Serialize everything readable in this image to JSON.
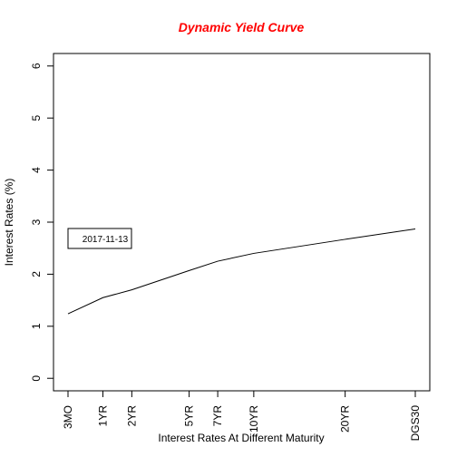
{
  "colors": {
    "title": "#ff0000",
    "line": "#000000",
    "axis": "#000000",
    "background": "#ffffff"
  },
  "chart_data": {
    "type": "line",
    "title": "Dynamic Yield Curve",
    "xlabel": "Interest Rates At Different Maturity",
    "ylabel": "Interest Rates (%)",
    "x_positions_years": [
      0.25,
      1,
      2,
      5,
      7,
      10,
      20,
      30
    ],
    "categories": [
      "3MO",
      "1YR",
      "2YR",
      "5YR",
      "7YR",
      "10YR",
      "20YR",
      "DGS30"
    ],
    "x_scale": "sqrt",
    "series": [
      {
        "name": "2017-11-13",
        "values": [
          1.24,
          1.55,
          1.7,
          2.07,
          2.25,
          2.4,
          2.67,
          2.87
        ]
      }
    ],
    "yticks": [
      0,
      1,
      2,
      3,
      4,
      5,
      6
    ],
    "ylim": [
      -0.24,
      6.24
    ],
    "grid": false,
    "legend": {
      "position": "left",
      "entries": [
        "2017-11-13"
      ]
    }
  }
}
